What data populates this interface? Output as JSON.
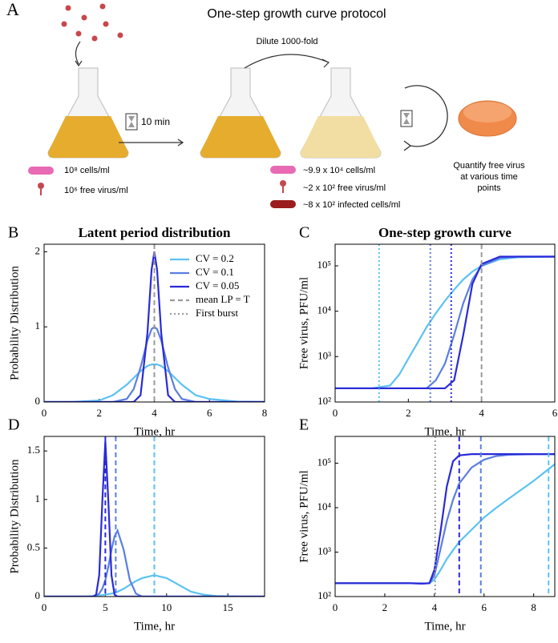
{
  "panel_a": {
    "label": "A",
    "title": "One-step growth curve protocol",
    "timer": "10 min",
    "dilute": "Dilute 1000-fold",
    "left_labels": [
      "10⁸ cells/ml",
      "10⁶ free virus/ml"
    ],
    "mid_labels": [
      "~9.9 x 10⁴ cells/ml",
      "~2 x 10² free virus/ml",
      "~8 x 10² infected cells/ml"
    ],
    "quantify": [
      "Quantify free virus",
      "at various time",
      "points"
    ]
  },
  "chart_data": [
    {
      "type": "line",
      "panel": "B",
      "title": "Latent period distribution",
      "xlabel": "Time, hr",
      "ylabel": "Probability Distribution",
      "xlim": [
        0,
        8
      ],
      "ylim": [
        0,
        2.1
      ],
      "xticks": [
        0,
        2,
        4,
        6,
        8
      ],
      "yticks": [
        0,
        1,
        2
      ],
      "legend": "upper right",
      "x": [
        0,
        1,
        2,
        2.5,
        3,
        3.25,
        3.5,
        3.75,
        3.9,
        4,
        4.1,
        4.25,
        4.5,
        4.75,
        5,
        5.5,
        6,
        7,
        8
      ],
      "series": [
        {
          "name": "CV = 0.2",
          "color": "#5bc2f2",
          "values": [
            0,
            0,
            0.02,
            0.09,
            0.23,
            0.32,
            0.41,
            0.48,
            0.5,
            0.5,
            0.5,
            0.48,
            0.41,
            0.32,
            0.23,
            0.09,
            0.04,
            0.005,
            0
          ]
        },
        {
          "name": "CV = 0.1",
          "color": "#5a7ee2",
          "values": [
            0,
            0,
            0,
            0,
            0.04,
            0.17,
            0.46,
            0.82,
            0.97,
            1,
            0.97,
            0.82,
            0.46,
            0.17,
            0.04,
            0,
            0,
            0,
            0
          ]
        },
        {
          "name": "CV = 0.05",
          "color": "#2a2ad8",
          "values": [
            0,
            0,
            0,
            0,
            0,
            0,
            0.09,
            0.92,
            1.76,
            2,
            1.76,
            0.92,
            0.09,
            0,
            0,
            0,
            0,
            0,
            0
          ]
        }
      ],
      "reference_lines": [
        {
          "name": "mean LP = T",
          "x": 4,
          "color": "#9a9a9a",
          "dash": "dashed"
        },
        {
          "name": "First burst",
          "color": "#9a9a9a",
          "dash": "dotted"
        }
      ]
    },
    {
      "type": "line",
      "panel": "C",
      "title": "One-step growth curve",
      "xlabel": "Time, hr",
      "ylabel": "Free virus, PFU/ml",
      "xlim": [
        0,
        6
      ],
      "ylim": [
        100,
        300000
      ],
      "ylog": true,
      "xticks": [
        0,
        2,
        4,
        6
      ],
      "yticks": [
        {
          "value": 100,
          "label": "10²"
        },
        {
          "value": 1000,
          "label": "10³"
        },
        {
          "value": 10000,
          "label": "10⁴"
        },
        {
          "value": 100000,
          "label": "10⁵"
        }
      ],
      "x": [
        0,
        1,
        1.5,
        1.75,
        2,
        2.25,
        2.5,
        2.75,
        3,
        3.25,
        3.5,
        3.75,
        4,
        4.5,
        5,
        6
      ],
      "series": [
        {
          "name": "CV = 0.2",
          "color": "#5bc2f2",
          "values": [
            200,
            200,
            230,
            400,
            900,
            2000,
            4500,
            9000,
            17000,
            30000,
            50000,
            75000,
            100000,
            140000,
            155000,
            160000
          ]
        },
        {
          "name": "CV = 0.1",
          "color": "#5a7ee2",
          "values": [
            200,
            200,
            200,
            200,
            200,
            200,
            200,
            300,
            700,
            3000,
            15000,
            50000,
            100000,
            150000,
            160000,
            160000
          ]
        },
        {
          "name": "CV = 0.05",
          "color": "#2a2ad8",
          "values": [
            200,
            200,
            200,
            200,
            200,
            200,
            200,
            200,
            200,
            300,
            3000,
            40000,
            110000,
            160000,
            160000,
            160000
          ]
        }
      ],
      "reference_lines": [
        {
          "x": 1.2,
          "color": "#5bc2f2",
          "dash": "dotted"
        },
        {
          "x": 2.6,
          "color": "#5a7ee2",
          "dash": "dotted"
        },
        {
          "x": 3.17,
          "color": "#2a2ad8",
          "dash": "dotted"
        },
        {
          "x": 4,
          "color": "#9a9a9a",
          "dash": "dashed"
        }
      ]
    },
    {
      "type": "line",
      "panel": "D",
      "xlabel": "Time, hr",
      "ylabel": "Probability Distribution",
      "xlim": [
        0,
        18
      ],
      "ylim": [
        0,
        1.65
      ],
      "xticks": [
        0,
        5,
        10,
        15
      ],
      "yticks": [
        0,
        0.5,
        1,
        1.5
      ],
      "x": [
        0,
        2,
        3,
        3.5,
        4,
        4.25,
        4.5,
        4.75,
        5,
        5.25,
        5.5,
        5.75,
        6,
        6.5,
        7,
        7.5,
        8,
        9,
        10,
        11,
        12,
        13,
        14,
        16,
        18
      ],
      "series": [
        {
          "name": "CV = 0.2",
          "color": "#5bc2f2",
          "values": [
            0,
            0,
            0,
            0,
            0.005,
            0.006,
            0.01,
            0.015,
            0.02,
            0.025,
            0.03,
            0.04,
            0.05,
            0.08,
            0.12,
            0.16,
            0.19,
            0.22,
            0.19,
            0.12,
            0.05,
            0.02,
            0.005,
            0,
            0
          ]
        },
        {
          "name": "CV = 0.1",
          "color": "#5a7ee2",
          "values": [
            0,
            0,
            0,
            0,
            0,
            0.01,
            0.03,
            0.08,
            0.17,
            0.31,
            0.48,
            0.62,
            0.68,
            0.48,
            0.17,
            0.03,
            0,
            0,
            0,
            0,
            0,
            0,
            0,
            0,
            0
          ]
        },
        {
          "name": "CV = 0.05",
          "color": "#2a2ad8",
          "values": [
            0,
            0,
            0,
            0,
            0,
            0.02,
            0.22,
            0.97,
            1.6,
            0.97,
            0.22,
            0.02,
            0,
            0,
            0,
            0,
            0,
            0,
            0,
            0,
            0,
            0,
            0,
            0,
            0
          ]
        }
      ],
      "reference_lines": [
        {
          "x": 5,
          "color": "#2a2ad8",
          "dash": "dashed"
        },
        {
          "x": 5.85,
          "color": "#5a7ee2",
          "dash": "dashed"
        },
        {
          "x": 9,
          "color": "#5bc2f2",
          "dash": "dashed"
        }
      ]
    },
    {
      "type": "line",
      "panel": "E",
      "xlabel": "Time, hr",
      "ylabel": "Free virus, PFU/ml",
      "xlim": [
        0,
        8.85
      ],
      "ylim": [
        100,
        400000
      ],
      "ylog": true,
      "xticks": [
        0,
        2,
        4,
        6,
        8
      ],
      "yticks": [
        {
          "value": 100,
          "label": "10²"
        },
        {
          "value": 1000,
          "label": "10³"
        },
        {
          "value": 10000,
          "label": "10⁴"
        },
        {
          "value": 100000,
          "label": "10⁵"
        }
      ],
      "x": [
        0,
        2,
        3,
        3.5,
        3.8,
        4,
        4.25,
        4.5,
        4.75,
        5,
        5.5,
        6,
        6.5,
        7,
        8,
        8.85
      ],
      "series": [
        {
          "name": "CV = 0.2",
          "color": "#5bc2f2",
          "values": [
            200,
            200,
            200,
            198,
            200,
            240,
            400,
            700,
            1100,
            1700,
            3200,
            6000,
            10000,
            16000,
            40000,
            95000
          ]
        },
        {
          "name": "CV = 0.1",
          "color": "#5a7ee2",
          "values": [
            200,
            200,
            200,
            196,
            200,
            300,
            1200,
            5000,
            15000,
            35000,
            80000,
            120000,
            145000,
            155000,
            160000,
            160000
          ]
        },
        {
          "name": "CV = 0.05",
          "color": "#2a2ad8",
          "values": [
            200,
            200,
            200,
            195,
            200,
            400,
            3000,
            30000,
            110000,
            150000,
            160000,
            160000,
            160000,
            160000,
            160000,
            160000
          ]
        }
      ],
      "reference_lines": [
        {
          "x": 4.03,
          "color": "#9a9a9a",
          "dash": "dotted"
        },
        {
          "x": 5,
          "color": "#2a2ad8",
          "dash": "dashed"
        },
        {
          "x": 5.87,
          "color": "#5a7ee2",
          "dash": "dashed"
        },
        {
          "x": 8.6,
          "color": "#5bc2f2",
          "dash": "dashed"
        }
      ]
    }
  ]
}
